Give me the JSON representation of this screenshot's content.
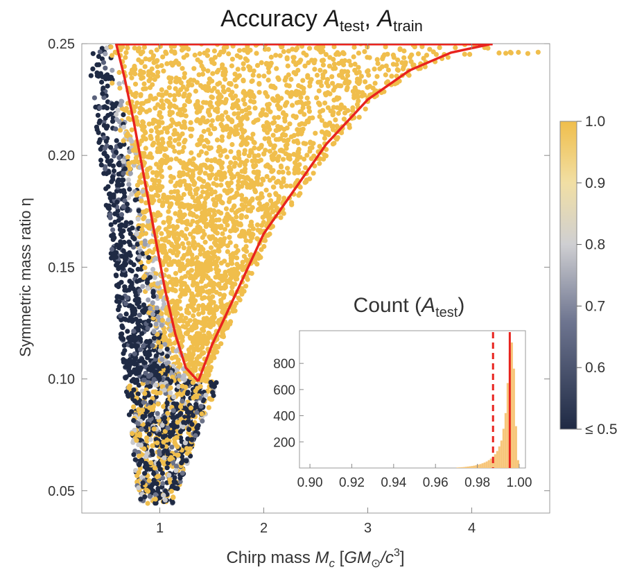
{
  "chart_data": [
    {
      "type": "scatter",
      "title_main": "Accuracy ",
      "title_a1": "A",
      "title_s1": "test",
      "title_sep": ", ",
      "title_a2": "A",
      "title_s2": "train",
      "xlabel_pre": "Chirp mass ",
      "xlabel_m": "M",
      "xlabel_c": "c",
      "xlabel_bracket_open": " [",
      "xlabel_gm": "GM",
      "xlabel_sun": "⊙",
      "xlabel_slash": "/c",
      "xlabel_exp": "3",
      "xlabel_bracket_close": "]",
      "ylabel": "Symmetric mass ratio η",
      "xlim": [
        0.25,
        4.75
      ],
      "ylim": [
        0.04,
        0.25
      ],
      "xticks": [
        1,
        2,
        3,
        4
      ],
      "yticks": [
        0.05,
        0.1,
        0.15,
        0.2,
        0.25
      ],
      "ytick_labels": [
        "0.05",
        "0.10",
        "0.15",
        "0.20",
        "0.25"
      ],
      "colors": {
        "high": "#F0BE4C",
        "low": "#1F2A44",
        "mid": "#C9C9CC",
        "boundary": "#E8231E"
      },
      "left_curve": [
        [
          0.58,
          0.25
        ],
        [
          0.66,
          0.235
        ],
        [
          0.75,
          0.215
        ],
        [
          0.85,
          0.19
        ],
        [
          0.95,
          0.165
        ],
        [
          1.05,
          0.14
        ],
        [
          1.15,
          0.12
        ],
        [
          1.25,
          0.105
        ],
        [
          1.37,
          0.099
        ]
      ],
      "right_curve": [
        [
          1.37,
          0.099
        ],
        [
          1.5,
          0.115
        ],
        [
          1.75,
          0.14
        ],
        [
          2.0,
          0.165
        ],
        [
          2.3,
          0.185
        ],
        [
          2.6,
          0.205
        ],
        [
          3.0,
          0.225
        ],
        [
          3.4,
          0.238
        ],
        [
          3.8,
          0.246
        ],
        [
          4.2,
          0.25
        ]
      ],
      "colorbar": {
        "labels": [
          "1.0",
          "0.9",
          "0.8",
          "0.7",
          "0.6",
          "≤ 0.5"
        ],
        "values": [
          1.0,
          0.9,
          0.8,
          0.7,
          0.6,
          0.5
        ]
      }
    },
    {
      "type": "bar",
      "title_pre": "Count (",
      "title_a": "A",
      "title_s": "test",
      "title_post": ")",
      "xlim": [
        0.895,
        1.003
      ],
      "ylim": [
        0,
        1050
      ],
      "xticks": [
        0.9,
        0.92,
        0.94,
        0.96,
        0.98,
        1.0
      ],
      "xtick_labels": [
        "0.90",
        "0.92",
        "0.94",
        "0.96",
        "0.98",
        "1.00"
      ],
      "yticks": [
        200,
        400,
        600,
        800
      ],
      "bin_width": 0.001,
      "bins": [
        {
          "x": 0.97,
          "count": 4
        },
        {
          "x": 0.971,
          "count": 5
        },
        {
          "x": 0.972,
          "count": 6
        },
        {
          "x": 0.973,
          "count": 7
        },
        {
          "x": 0.974,
          "count": 9
        },
        {
          "x": 0.975,
          "count": 11
        },
        {
          "x": 0.976,
          "count": 13
        },
        {
          "x": 0.977,
          "count": 15
        },
        {
          "x": 0.978,
          "count": 18
        },
        {
          "x": 0.979,
          "count": 22
        },
        {
          "x": 0.98,
          "count": 26
        },
        {
          "x": 0.981,
          "count": 30
        },
        {
          "x": 0.982,
          "count": 36
        },
        {
          "x": 0.983,
          "count": 42
        },
        {
          "x": 0.984,
          "count": 50
        },
        {
          "x": 0.985,
          "count": 60
        },
        {
          "x": 0.986,
          "count": 72
        },
        {
          "x": 0.987,
          "count": 88
        },
        {
          "x": 0.988,
          "count": 105
        },
        {
          "x": 0.989,
          "count": 130
        },
        {
          "x": 0.99,
          "count": 165
        },
        {
          "x": 0.991,
          "count": 210
        },
        {
          "x": 0.992,
          "count": 300
        },
        {
          "x": 0.993,
          "count": 420
        },
        {
          "x": 0.994,
          "count": 650
        },
        {
          "x": 0.995,
          "count": 880
        },
        {
          "x": 0.996,
          "count": 960
        },
        {
          "x": 0.997,
          "count": 760
        },
        {
          "x": 0.998,
          "count": 320
        },
        {
          "x": 0.999,
          "count": 60
        }
      ],
      "dashed_line_x": 0.9875,
      "solid_line_x": 0.9955
    }
  ]
}
